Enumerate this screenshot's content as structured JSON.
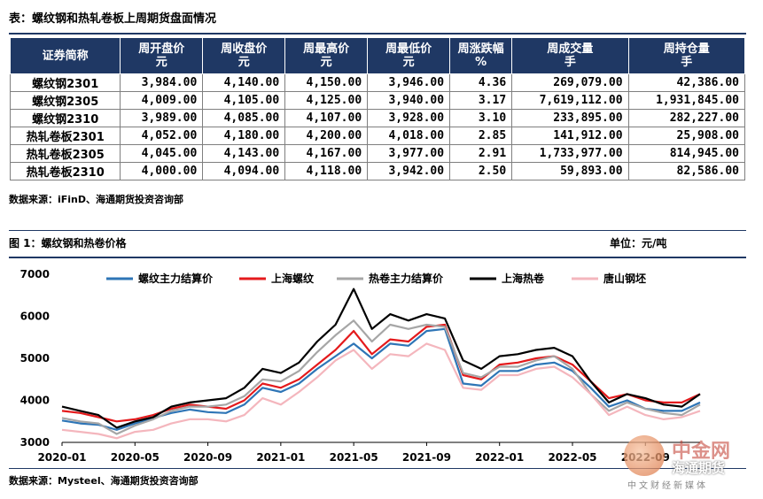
{
  "table_title": "表：螺纹钢和热轧卷板上周期货盘面情况",
  "table": {
    "headers": [
      {
        "l1": "证券简称",
        "l2": ""
      },
      {
        "l1": "周开盘价",
        "l2": "元"
      },
      {
        "l1": "周收盘价",
        "l2": "元"
      },
      {
        "l1": "周最高价",
        "l2": "元"
      },
      {
        "l1": "周最低价",
        "l2": "元"
      },
      {
        "l1": "周涨跌幅",
        "l2": "%"
      },
      {
        "l1": "周成交量",
        "l2": "手"
      },
      {
        "l1": "周持仓量",
        "l2": "手"
      }
    ],
    "rows": [
      [
        "螺纹钢2301",
        "3,984.00",
        "4,140.00",
        "4,150.00",
        "3,946.00",
        "4.36",
        "269,079.00",
        "42,386.00"
      ],
      [
        "螺纹钢2305",
        "4,009.00",
        "4,105.00",
        "4,125.00",
        "3,940.00",
        "3.17",
        "7,619,112.00",
        "1,931,845.00"
      ],
      [
        "螺纹钢2310",
        "3,989.00",
        "4,085.00",
        "4,107.00",
        "3,928.00",
        "3.10",
        "233,895.00",
        "282,227.00"
      ],
      [
        "热轧卷板2301",
        "4,052.00",
        "4,180.00",
        "4,200.00",
        "4,018.00",
        "2.85",
        "141,912.00",
        "25,908.00"
      ],
      [
        "热轧卷板2305",
        "4,045.00",
        "4,143.00",
        "4,167.00",
        "3,977.00",
        "2.91",
        "1,733,977.00",
        "814,945.00"
      ],
      [
        "热轧卷板2310",
        "4,000.00",
        "4,094.00",
        "4,118.00",
        "3,942.00",
        "2.50",
        "59,893.00",
        "82,586.00"
      ]
    ]
  },
  "table_source": "数据来源：iFinD、海通期货投资咨询部",
  "figure_title": "图 1：螺纹钢和热卷价格",
  "unit": "单位：元/吨",
  "chart_source": "数据来源：Mysteel、海通期货投资咨询部",
  "watermark": {
    "brand": "中金网",
    "sub": "海通期货",
    "tagline": "中文财经新媒体"
  },
  "chart_data": {
    "type": "line",
    "x": [
      "2020-01",
      "2020-02",
      "2020-03",
      "2020-04",
      "2020-05",
      "2020-06",
      "2020-07",
      "2020-08",
      "2020-09",
      "2020-10",
      "2020-11",
      "2020-12",
      "2021-01",
      "2021-02",
      "2021-03",
      "2021-04",
      "2021-05",
      "2021-06",
      "2021-07",
      "2021-08",
      "2021-09",
      "2021-10",
      "2021-11",
      "2021-12",
      "2022-01",
      "2022-02",
      "2022-03",
      "2022-04",
      "2022-05",
      "2022-06",
      "2022-07",
      "2022-08",
      "2022-09",
      "2022-10",
      "2022-11",
      "2022-12"
    ],
    "xticks": [
      "2020-01",
      "2020-05",
      "2020-09",
      "2021-01",
      "2021-05",
      "2021-09",
      "2022-01",
      "2022-05",
      "2022-09"
    ],
    "ylim": [
      3000,
      7000
    ],
    "yticks": [
      3000,
      4000,
      5000,
      6000,
      7000
    ],
    "legend_position": "top",
    "series": [
      {
        "name": "螺纹主力结算价",
        "color": "#2e75b6",
        "values": [
          3520,
          3450,
          3420,
          3300,
          3450,
          3580,
          3700,
          3780,
          3720,
          3700,
          3900,
          4300,
          4200,
          4400,
          4750,
          5050,
          5350,
          5000,
          5350,
          5300,
          5650,
          5700,
          4400,
          4350,
          4700,
          4700,
          4850,
          4900,
          4700,
          4300,
          3850,
          4000,
          3800,
          3750,
          3750,
          3950
        ]
      },
      {
        "name": "上海螺纹",
        "color": "#e41a1c",
        "values": [
          3750,
          3700,
          3600,
          3500,
          3550,
          3650,
          3800,
          3900,
          3850,
          3800,
          4000,
          4400,
          4300,
          4500,
          4850,
          5200,
          5650,
          5100,
          5450,
          5400,
          5750,
          5800,
          4600,
          4500,
          4850,
          4900,
          5000,
          5050,
          4850,
          4450,
          4050,
          4150,
          4000,
          3950,
          3950,
          4150
        ]
      },
      {
        "name": "热卷主力结算价",
        "color": "#a6a6a6",
        "values": [
          3580,
          3500,
          3450,
          3200,
          3400,
          3550,
          3750,
          3850,
          3850,
          3900,
          4100,
          4500,
          4450,
          4700,
          5150,
          5550,
          5900,
          5400,
          5800,
          5700,
          5800,
          5750,
          4650,
          4550,
          4800,
          4800,
          4950,
          5050,
          4750,
          4150,
          3750,
          3950,
          3800,
          3700,
          3650,
          3900
        ]
      },
      {
        "name": "上海热卷",
        "color": "#000000",
        "values": [
          3850,
          3750,
          3650,
          3350,
          3500,
          3600,
          3850,
          3950,
          4000,
          4050,
          4300,
          4750,
          4650,
          4900,
          5400,
          5800,
          6650,
          5700,
          6050,
          5900,
          6050,
          5950,
          4950,
          4750,
          5050,
          5100,
          5200,
          5250,
          5050,
          4450,
          3950,
          4150,
          4050,
          3900,
          3850,
          4150
        ]
      },
      {
        "name": "唐山钢坯",
        "color": "#f4b6bd",
        "values": [
          3300,
          3250,
          3200,
          3100,
          3250,
          3300,
          3450,
          3550,
          3550,
          3500,
          3650,
          4050,
          3900,
          4200,
          4550,
          4950,
          5200,
          4750,
          5100,
          5050,
          5350,
          5200,
          4300,
          4250,
          4600,
          4600,
          4750,
          4800,
          4550,
          4150,
          3650,
          3850,
          3650,
          3550,
          3600,
          3750
        ]
      }
    ]
  }
}
